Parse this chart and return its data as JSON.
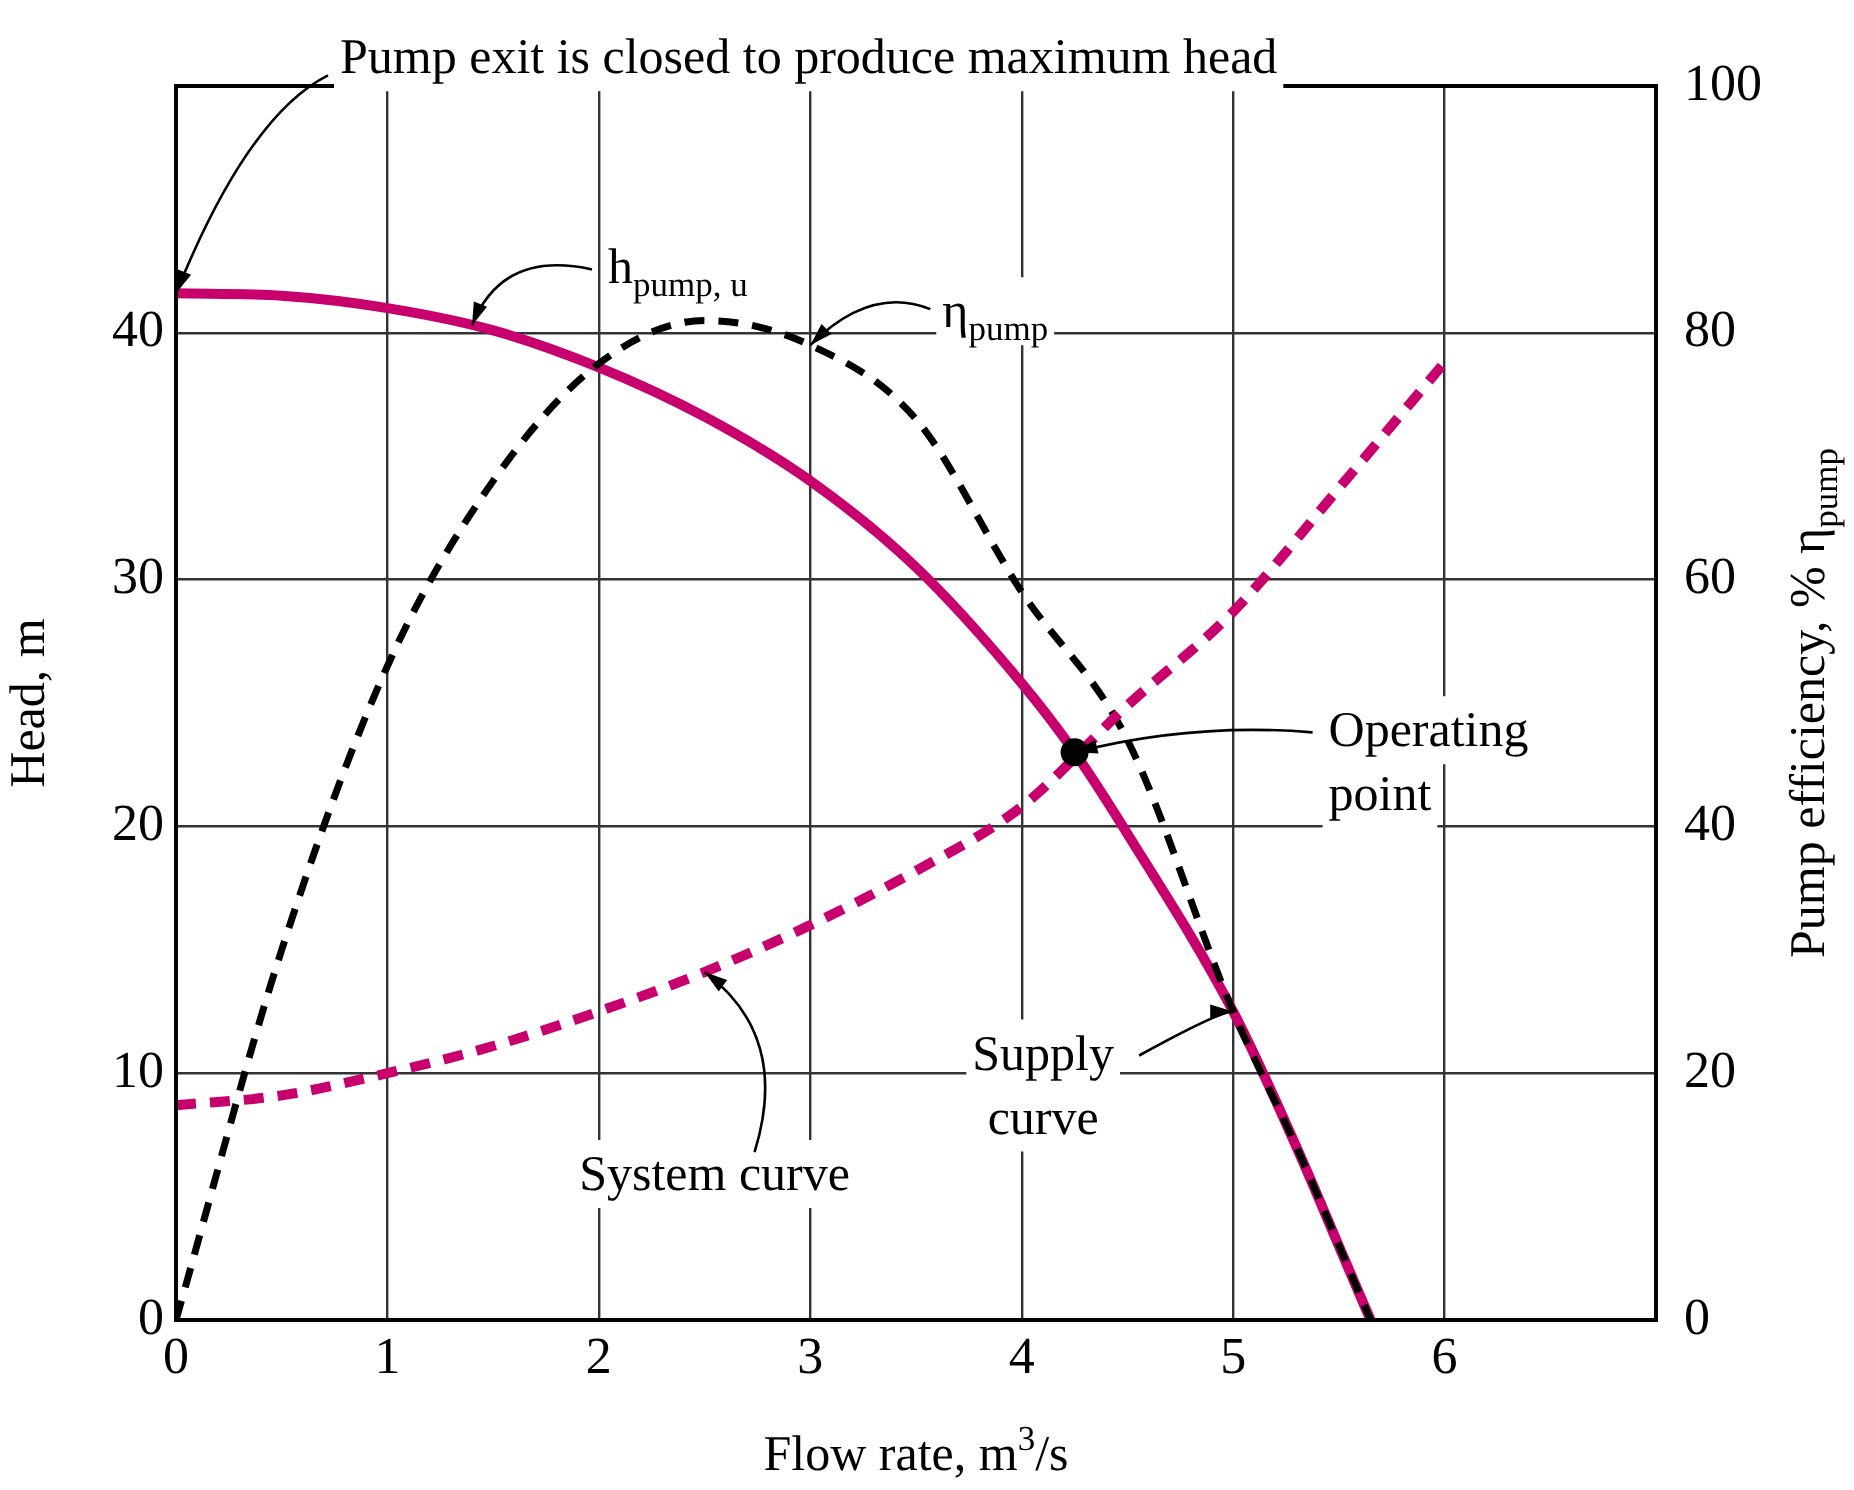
{
  "chart_data": {
    "type": "line",
    "xlabel": "Flow rate, m$^{3}$/s",
    "ylabel": "Head, m",
    "y2label": "Pump efficiency, % η$_{pump}$",
    "xlim": [
      0,
      7
    ],
    "xticks": [
      0,
      1,
      2,
      3,
      4,
      5,
      6,
      {
        "value": 7,
        "label": null
      }
    ],
    "ylim": [
      0,
      50
    ],
    "yticks": [
      0,
      10,
      20,
      30,
      40,
      {
        "value": 50,
        "label": null
      }
    ],
    "y2lim": [
      0,
      100
    ],
    "y2ticks": [
      0,
      20,
      40,
      60,
      80,
      100
    ],
    "grid": true,
    "legend": false,
    "series": [
      {
        "color": "#c8006e",
        "line_style": "solid",
        "marker": "none",
        "x": [
          0,
          0.5,
          1,
          1.5,
          2,
          2.5,
          3,
          3.5,
          4,
          4.25,
          4.5,
          5,
          5.3,
          5.5,
          5.65
        ],
        "values": [
          41.6,
          41.5,
          41.0,
          40.1,
          38.6,
          36.6,
          34.0,
          30.5,
          25.8,
          23,
          19.7,
          12.5,
          7,
          3,
          0
        ]
      },
      {
        "color": "#000000",
        "line_style": "dashed",
        "marker": "none",
        "axis": "y2",
        "x": [
          0,
          0.5,
          1,
          1.5,
          2,
          2.5,
          3,
          3.5,
          4,
          4.5,
          5,
          5.3,
          5.65
        ],
        "values": [
          0,
          30,
          53,
          68,
          77.5,
          81,
          79,
          73,
          59,
          47,
          25,
          14,
          0
        ]
      },
      {
        "color": "#c8006e",
        "line_style": "dashed",
        "marker": "none",
        "x": [
          0,
          0.5,
          1,
          1.5,
          2,
          2.5,
          3,
          3.5,
          4,
          4.5,
          5,
          5.5,
          6
        ],
        "values": [
          8.7,
          9.1,
          10,
          11.1,
          12.5,
          14.1,
          16,
          18.2,
          20.8,
          24.9,
          28.7,
          33.7,
          38.8
        ]
      },
      {
        "type": "scatter",
        "color": "#000000",
        "marker": "circle",
        "x": [
          4.25
        ],
        "values": [
          23
        ]
      }
    ],
    "annotations": [
      {
        "text": "Pump exit is closed to produce maximum head",
        "x": 0,
        "y": 41.6
      },
      {
        "text": "h$_{pump, u}$",
        "x": 1.4,
        "y": 40.3
      },
      {
        "text": "η$_{pump}$",
        "x": 3,
        "y": 39.5
      },
      {
        "text": "Operating point",
        "x": 4.25,
        "y": 23
      },
      {
        "text": "Supply curve",
        "x": 5,
        "y": 12.5
      },
      {
        "text": "System curve",
        "x": 2.5,
        "y": 14.1
      }
    ]
  }
}
